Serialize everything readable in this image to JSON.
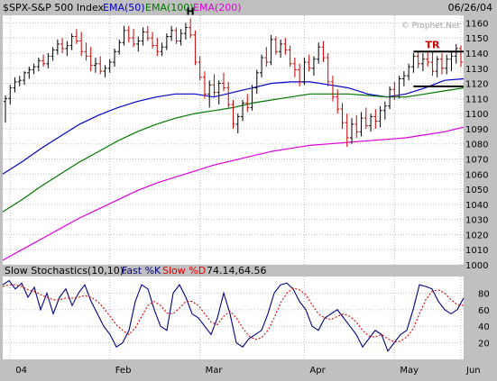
{
  "header": {
    "symbol": "$SPX-S&P 500 Index",
    "ema50_label": "EMA(50)",
    "ema100_label": "EMA(100)",
    "ema200_label": "EMA(200)",
    "date": "06/26/04"
  },
  "lower_header": {
    "title": "Slow Stochastics(10,10):",
    "fast_label": "Fast %K",
    "slow_label": "Slow %D",
    "values": "74.14,64.56"
  },
  "watermark": "© Prophet.Net",
  "annotations": {
    "peak_label": "H",
    "range_label": "TR"
  },
  "colors": {
    "background": "#ffffff",
    "frame": "#c0c0c0",
    "grid": "#c0c0c0",
    "bar": "#000000",
    "ema50": "#0000cc",
    "ema100": "#007700",
    "ema200": "#dd00dd",
    "fast_k": "#000080",
    "slow_d": "#e00000",
    "annotation": "#cc0000"
  },
  "chart_data": [
    {
      "type": "ohlc",
      "title": "$SPX-S&P 500 Index",
      "x_tick_labels": [
        "04",
        "Feb",
        "Mar",
        "Apr",
        "May",
        "Jun"
      ],
      "ylim": [
        1000,
        1165
      ],
      "y_ticks": [
        1000,
        1010,
        1020,
        1030,
        1040,
        1050,
        1060,
        1070,
        1080,
        1090,
        1100,
        1110,
        1120,
        1130,
        1140,
        1150,
        1160
      ],
      "grid": true,
      "bars": [
        [
          1108,
          1112,
          1094,
          1110
        ],
        [
          1110,
          1119,
          1106,
          1117
        ],
        [
          1117,
          1124,
          1114,
          1121
        ],
        [
          1121,
          1125,
          1118,
          1122
        ],
        [
          1122,
          1128,
          1119,
          1127
        ],
        [
          1127,
          1131,
          1123,
          1129
        ],
        [
          1129,
          1133,
          1126,
          1131
        ],
        [
          1131,
          1137,
          1128,
          1135
        ],
        [
          1135,
          1139,
          1131,
          1133
        ],
        [
          1133,
          1140,
          1130,
          1138
        ],
        [
          1138,
          1144,
          1135,
          1142
        ],
        [
          1142,
          1149,
          1139,
          1146
        ],
        [
          1146,
          1150,
          1140,
          1143
        ],
        [
          1143,
          1148,
          1138,
          1145
        ],
        [
          1145,
          1153,
          1142,
          1151
        ],
        [
          1151,
          1156,
          1146,
          1148
        ],
        [
          1148,
          1154,
          1138,
          1141
        ],
        [
          1141,
          1147,
          1135,
          1138
        ],
        [
          1138,
          1144,
          1128,
          1132
        ],
        [
          1132,
          1137,
          1127,
          1133
        ],
        [
          1133,
          1138,
          1126,
          1128
        ],
        [
          1128,
          1132,
          1124,
          1130
        ],
        [
          1130,
          1136,
          1127,
          1134
        ],
        [
          1134,
          1143,
          1131,
          1141
        ],
        [
          1141,
          1149,
          1139,
          1147
        ],
        [
          1147,
          1158,
          1145,
          1155
        ],
        [
          1155,
          1158,
          1147,
          1150
        ],
        [
          1150,
          1156,
          1144,
          1146
        ],
        [
          1146,
          1151,
          1141,
          1148
        ],
        [
          1148,
          1157,
          1145,
          1154
        ],
        [
          1154,
          1158,
          1148,
          1150
        ],
        [
          1150,
          1154,
          1143,
          1145
        ],
        [
          1145,
          1150,
          1138,
          1141
        ],
        [
          1141,
          1147,
          1138,
          1144
        ],
        [
          1144,
          1153,
          1142,
          1151
        ],
        [
          1151,
          1158,
          1148,
          1155
        ],
        [
          1155,
          1157,
          1146,
          1148
        ],
        [
          1148,
          1156,
          1145,
          1153
        ],
        [
          1153,
          1160,
          1149,
          1157
        ],
        [
          1157,
          1163,
          1150,
          1152
        ],
        [
          1152,
          1155,
          1132,
          1134
        ],
        [
          1134,
          1138,
          1122,
          1124
        ],
        [
          1124,
          1128,
          1110,
          1113
        ],
        [
          1113,
          1122,
          1104,
          1119
        ],
        [
          1119,
          1126,
          1111,
          1114
        ],
        [
          1114,
          1122,
          1106,
          1120
        ],
        [
          1120,
          1127,
          1115,
          1117
        ],
        [
          1117,
          1121,
          1104,
          1106
        ],
        [
          1106,
          1109,
          1090,
          1093
        ],
        [
          1093,
          1100,
          1087,
          1098
        ],
        [
          1098,
          1109,
          1095,
          1107
        ],
        [
          1107,
          1113,
          1101,
          1104
        ],
        [
          1104,
          1119,
          1102,
          1117
        ],
        [
          1117,
          1129,
          1113,
          1127
        ],
        [
          1127,
          1139,
          1124,
          1137
        ],
        [
          1137,
          1144,
          1131,
          1134
        ],
        [
          1134,
          1152,
          1132,
          1149
        ],
        [
          1149,
          1151,
          1139,
          1141
        ],
        [
          1141,
          1149,
          1137,
          1146
        ],
        [
          1146,
          1150,
          1139,
          1142
        ],
        [
          1142,
          1145,
          1131,
          1133
        ],
        [
          1133,
          1137,
          1124,
          1129
        ],
        [
          1129,
          1133,
          1118,
          1121
        ],
        [
          1121,
          1137,
          1119,
          1134
        ],
        [
          1134,
          1139,
          1128,
          1130
        ],
        [
          1130,
          1138,
          1125,
          1136
        ],
        [
          1136,
          1147,
          1133,
          1144
        ],
        [
          1144,
          1148,
          1134,
          1137
        ],
        [
          1137,
          1140,
          1118,
          1121
        ],
        [
          1121,
          1125,
          1108,
          1111
        ],
        [
          1111,
          1116,
          1100,
          1103
        ],
        [
          1103,
          1107,
          1090,
          1094
        ],
        [
          1094,
          1100,
          1078,
          1084
        ],
        [
          1084,
          1097,
          1080,
          1093
        ],
        [
          1093,
          1099,
          1084,
          1088
        ],
        [
          1088,
          1101,
          1085,
          1097
        ],
        [
          1097,
          1104,
          1090,
          1092
        ],
        [
          1092,
          1100,
          1088,
          1098
        ],
        [
          1098,
          1103,
          1090,
          1095
        ],
        [
          1095,
          1105,
          1091,
          1102
        ],
        [
          1102,
          1108,
          1096,
          1105
        ],
        [
          1105,
          1118,
          1103,
          1116
        ],
        [
          1116,
          1121,
          1109,
          1112
        ],
        [
          1112,
          1125,
          1110,
          1123
        ],
        [
          1123,
          1128,
          1118,
          1125
        ],
        [
          1125,
          1133,
          1122,
          1131
        ],
        [
          1131,
          1140,
          1127,
          1138
        ],
        [
          1138,
          1141,
          1130,
          1133
        ],
        [
          1133,
          1140,
          1128,
          1136
        ],
        [
          1136,
          1141,
          1131,
          1134
        ],
        [
          1134,
          1141,
          1125,
          1128
        ],
        [
          1128,
          1138,
          1124,
          1136
        ],
        [
          1136,
          1140,
          1126,
          1130
        ],
        [
          1130,
          1139,
          1126,
          1136
        ],
        [
          1136,
          1141,
          1128,
          1138
        ],
        [
          1138,
          1146,
          1133,
          1143
        ],
        [
          1143,
          1145,
          1131,
          1134
        ]
      ],
      "series": [
        {
          "name": "EMA(50)",
          "values": [
            1060,
            1068,
            1077,
            1085,
            1093,
            1099,
            1104,
            1108,
            1111,
            1113,
            1113,
            1111,
            1114,
            1117,
            1120,
            1121,
            1121,
            1119,
            1117,
            1113,
            1111,
            1113,
            1117,
            1122,
            1123
          ]
        },
        {
          "name": "EMA(100)",
          "values": [
            1035,
            1043,
            1052,
            1060,
            1068,
            1075,
            1082,
            1088,
            1093,
            1097,
            1100,
            1102,
            1104,
            1107,
            1109,
            1111,
            1113,
            1113,
            1113,
            1112,
            1111,
            1111,
            1113,
            1115,
            1117
          ]
        },
        {
          "name": "EMA(200)",
          "values": [
            1003,
            1010,
            1017,
            1024,
            1031,
            1037,
            1043,
            1049,
            1054,
            1058,
            1062,
            1066,
            1069,
            1072,
            1075,
            1077,
            1079,
            1080,
            1081,
            1082,
            1083,
            1084,
            1086,
            1088,
            1091
          ]
        }
      ],
      "trading_range": {
        "upper": 1141,
        "lower": 1118
      },
      "annotations": [
        {
          "text": "H",
          "bar_index": 39
        },
        {
          "text": "TR",
          "bar_index": 90
        }
      ]
    },
    {
      "type": "line",
      "title": "Slow Stochastics(10,10)",
      "ylim": [
        0,
        100
      ],
      "y_ticks": [
        20,
        40,
        60,
        80
      ],
      "grid": true,
      "series": [
        {
          "name": "Fast %K",
          "values": [
            90,
            95,
            85,
            92,
            75,
            87,
            60,
            80,
            55,
            75,
            85,
            65,
            80,
            90,
            70,
            55,
            40,
            30,
            15,
            20,
            35,
            70,
            90,
            85,
            60,
            40,
            35,
            80,
            90,
            75,
            55,
            50,
            40,
            30,
            50,
            80,
            55,
            20,
            15,
            25,
            30,
            35,
            55,
            80,
            90,
            92,
            85,
            70,
            60,
            40,
            35,
            50,
            55,
            60,
            50,
            40,
            30,
            15,
            25,
            35,
            30,
            10,
            20,
            30,
            35,
            60,
            90,
            88,
            85,
            70,
            60,
            55,
            60,
            74
          ]
        },
        {
          "name": "Slow %D",
          "values": [
            88,
            90,
            90,
            88,
            84,
            82,
            78,
            75,
            72,
            72,
            74,
            74,
            75,
            77,
            75,
            70,
            62,
            52,
            42,
            35,
            30,
            38,
            52,
            65,
            70,
            65,
            56,
            55,
            62,
            70,
            70,
            65,
            55,
            45,
            42,
            52,
            58,
            50,
            38,
            28,
            24,
            26,
            35,
            50,
            68,
            80,
            86,
            84,
            78,
            66,
            55,
            50,
            48,
            52,
            55,
            52,
            45,
            35,
            28,
            27,
            30,
            25,
            21,
            22,
            27,
            37,
            55,
            72,
            82,
            84,
            80,
            72,
            66,
            65
          ]
        }
      ]
    }
  ]
}
